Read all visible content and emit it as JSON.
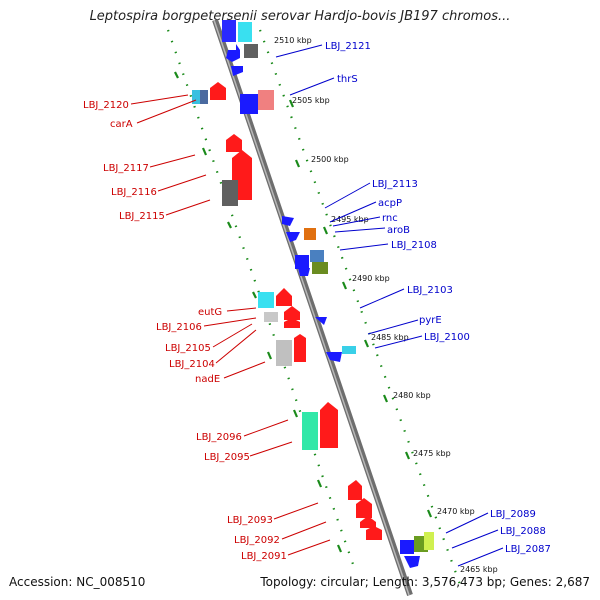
{
  "title": "Leptospira borgpetersenii serovar Hardjo-bovis JB197 chromos...",
  "footer": {
    "accession": "Accession: NC_008510",
    "summary": "Topology: circular; Length: 3,576,473 bp; Genes: 2,687"
  },
  "scale_marks": [
    "2510 kbp",
    "2505 kbp",
    "2500 kbp",
    "2495 kbp",
    "2490 kbp",
    "2485 kbp",
    "2480 kbp",
    "2475 kbp",
    "2470 kbp",
    "2465 kbp"
  ],
  "forward_genes": [
    "LBJ_2121",
    "thrS",
    "LBJ_2113",
    "acpP",
    "rnc",
    "aroB",
    "LBJ_2108",
    "LBJ_2103",
    "pyrE",
    "LBJ_2100",
    "LBJ_2089",
    "LBJ_2088",
    "LBJ_2087"
  ],
  "reverse_genes": [
    "LBJ_2120",
    "carA",
    "LBJ_2117",
    "LBJ_2116",
    "LBJ_2115",
    "eutG",
    "LBJ_2106",
    "LBJ_2105",
    "LBJ_2104",
    "nadE",
    "LBJ_2096",
    "LBJ_2095",
    "LBJ_2093",
    "LBJ_2092",
    "LBJ_2091"
  ],
  "colors": {
    "forward_label": "#0000cc",
    "reverse_label": "#cc0000",
    "backbone": "#808080",
    "dotted_track": "#1a8a1a"
  }
}
